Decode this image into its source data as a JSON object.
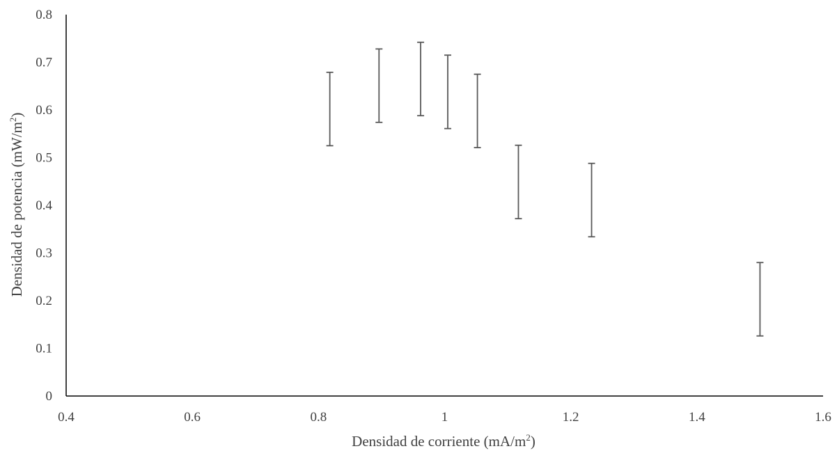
{
  "chart_data": {
    "type": "scatter",
    "xlabel": "Densidad de corriente (mA/m",
    "xlabel_sup": "2",
    "xlabel_close": ")",
    "ylabel": "Densidad de potencia (mW/m",
    "ylabel_sup": "2",
    "ylabel_close": ")",
    "xlim": [
      0.4,
      1.6
    ],
    "ylim": [
      0,
      0.8
    ],
    "x_ticks": [
      0.4,
      0.6,
      0.8,
      1.0,
      1.2,
      1.4,
      1.6
    ],
    "x_tick_labels": [
      "0.4",
      "0.6",
      "0.8",
      "1",
      "1.2",
      "1.4",
      "1.6"
    ],
    "y_ticks": [
      0,
      0.1,
      0.2,
      0.3,
      0.4,
      0.5,
      0.6,
      0.7,
      0.8
    ],
    "y_tick_labels": [
      "0",
      "0.1",
      "0.2",
      "0.3",
      "0.4",
      "0.5",
      "0.6",
      "0.7",
      "0.8"
    ],
    "grid": false,
    "legend": false,
    "series": [
      {
        "marker": "none",
        "error_bars": true,
        "points": [
          {
            "x": 0.818,
            "y": 0.602,
            "y_low": 0.525,
            "y_high": 0.679
          },
          {
            "x": 0.896,
            "y": 0.651,
            "y_low": 0.574,
            "y_high": 0.728
          },
          {
            "x": 0.962,
            "y": 0.665,
            "y_low": 0.588,
            "y_high": 0.742
          },
          {
            "x": 1.005,
            "y": 0.638,
            "y_low": 0.561,
            "y_high": 0.715
          },
          {
            "x": 1.052,
            "y": 0.598,
            "y_low": 0.521,
            "y_high": 0.675
          },
          {
            "x": 1.117,
            "y": 0.449,
            "y_low": 0.372,
            "y_high": 0.526
          },
          {
            "x": 1.233,
            "y": 0.411,
            "y_low": 0.334,
            "y_high": 0.488
          },
          {
            "x": 1.5,
            "y": 0.203,
            "y_low": 0.126,
            "y_high": 0.28
          }
        ]
      }
    ],
    "colors": {
      "axis": "#000000",
      "error_bar": "#595959",
      "text": "#404040"
    }
  }
}
